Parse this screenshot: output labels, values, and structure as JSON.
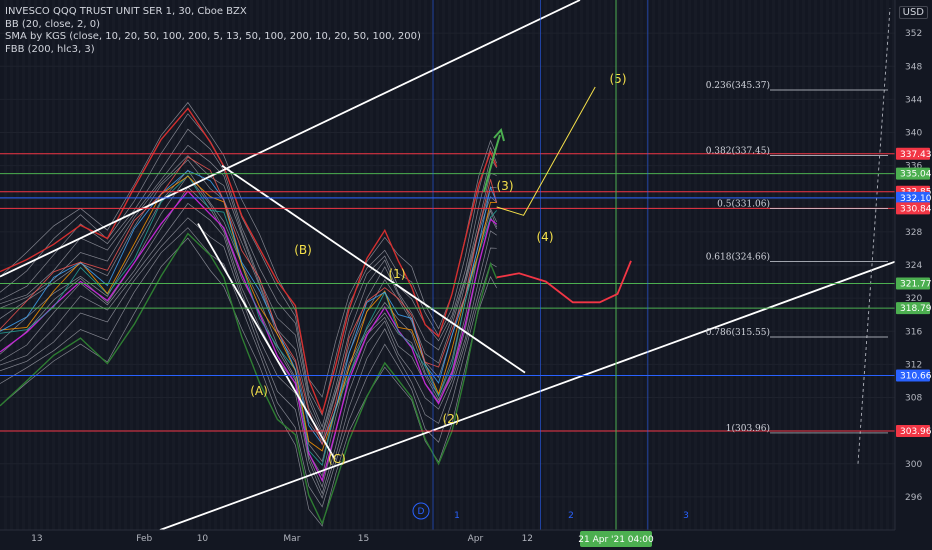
{
  "legend": {
    "title": "INVESCO QQQ TRUST UNIT SER 1, 30, Cboe BZX",
    "bb": "BB (20, close, 2, 0)",
    "sma": "SMA by KGS (close, 10, 20, 50, 100, 200, 5, 13, 50, 100, 200, 10, 20, 50, 100, 200)",
    "fbb": "FBB (200, hlc3, 3)"
  },
  "currency": "USD",
  "colors": {
    "background": "#131722",
    "red_line": "#f23645",
    "green_line": "#4caf50",
    "blue_line": "#2962ff",
    "wave_label": "#f5e04a",
    "channel": "#ffffff",
    "bollinger_upper": "#d32f2f",
    "bollinger_lower": "#2e7d32",
    "sma_magenta": "#c026d3"
  },
  "chart_data": {
    "type": "line",
    "ylim": [
      292,
      356
    ],
    "y_ticks": [
      296,
      300,
      304,
      308,
      312,
      316,
      320,
      324,
      328,
      332,
      336,
      340,
      344,
      348,
      352
    ],
    "x_ticks": [
      {
        "label": "13",
        "t": 0.03
      },
      {
        "label": "Feb",
        "t": 0.15
      },
      {
        "label": "10",
        "t": 0.215
      },
      {
        "label": "Mar",
        "t": 0.315
      },
      {
        "label": "15",
        "t": 0.395
      },
      {
        "label": "Apr",
        "t": 0.52
      },
      {
        "label": "12",
        "t": 0.578
      }
    ],
    "crosshair_label": "21 Apr '21  04:00",
    "session_markers": [
      "1",
      "2",
      "3"
    ],
    "dividend_marker": "D",
    "horizontal_levels": [
      {
        "value": 337.43,
        "label": "337.43",
        "color": "red"
      },
      {
        "value": 335.04,
        "label": "335.04",
        "color": "green"
      },
      {
        "value": 332.85,
        "label": "332.85",
        "color": "red"
      },
      {
        "value": 332.1,
        "label": "332.10",
        "color": "blue"
      },
      {
        "value": 330.84,
        "label": "330.84",
        "color": "red"
      },
      {
        "value": 321.77,
        "label": "321.77",
        "color": "green"
      },
      {
        "value": 318.79,
        "label": "318.79",
        "color": "green"
      },
      {
        "value": 310.66,
        "label": "310.66",
        "color": "blue"
      },
      {
        "value": 303.96,
        "label": "303.96",
        "color": "red"
      }
    ],
    "fib_levels": [
      {
        "label": "0.236(345.37)",
        "value": 345.37
      },
      {
        "label": "0.382(337.45)",
        "value": 337.45
      },
      {
        "label": "0.5(331.06)",
        "value": 331.06
      },
      {
        "label": "0.618(324.66)",
        "value": 324.66
      },
      {
        "label": "0.786(315.55)",
        "value": 315.55
      },
      {
        "label": "1(303.96)",
        "value": 303.96
      }
    ],
    "wave_labels": [
      "(A)",
      "(B)",
      "(C)",
      "(1)",
      "(2)",
      "(3)",
      "(4)",
      "(5)"
    ],
    "price_path": [
      [
        0.0,
        316
      ],
      [
        0.03,
        318
      ],
      [
        0.06,
        321
      ],
      [
        0.09,
        324
      ],
      [
        0.12,
        322
      ],
      [
        0.15,
        327
      ],
      [
        0.18,
        332
      ],
      [
        0.21,
        336
      ],
      [
        0.235,
        333
      ],
      [
        0.25,
        331
      ],
      [
        0.27,
        325
      ],
      [
        0.29,
        320
      ],
      [
        0.31,
        315
      ],
      [
        0.33,
        312
      ],
      [
        0.345,
        304
      ],
      [
        0.36,
        301
      ],
      [
        0.375,
        307
      ],
      [
        0.39,
        313
      ],
      [
        0.41,
        318
      ],
      [
        0.43,
        321
      ],
      [
        0.445,
        318
      ],
      [
        0.46,
        316
      ],
      [
        0.475,
        312
      ],
      [
        0.49,
        310
      ],
      [
        0.505,
        314
      ],
      [
        0.52,
        320
      ],
      [
        0.535,
        327
      ],
      [
        0.548,
        332
      ],
      [
        0.555,
        331
      ]
    ],
    "projection_path": [
      [
        0.555,
        331
      ],
      [
        0.585,
        330
      ],
      [
        0.665,
        345.5
      ]
    ],
    "forecast_path": [
      [
        0.555,
        322.5
      ],
      [
        0.58,
        323
      ],
      [
        0.61,
        322
      ],
      [
        0.64,
        319.5
      ],
      [
        0.67,
        319.5
      ],
      [
        0.69,
        320.5
      ],
      [
        0.705,
        324.5
      ]
    ]
  }
}
